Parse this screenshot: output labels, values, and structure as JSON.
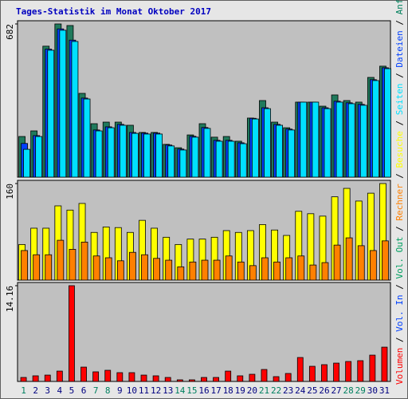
{
  "title": "Tages-Statistik im Monat Oktober 2017",
  "side_legend": {
    "separator": " / ",
    "items": [
      {
        "name": "Volumen",
        "color": "#ff0000"
      },
      {
        "name": "Vol. In",
        "color": "#0040ff"
      },
      {
        "name": "Vol. Out",
        "color": "#00a060"
      },
      {
        "name": "Rechner",
        "color": "#ff8000"
      },
      {
        "name": "Besuche",
        "color": "#ffff00"
      },
      {
        "name": "Seiten",
        "color": "#00e0ff"
      },
      {
        "name": "Dateien",
        "color": "#0040ff"
      },
      {
        "name": "Anfragen",
        "color": "#00805c"
      }
    ]
  },
  "chart_data": [
    {
      "type": "bar",
      "ylim": [
        0,
        682
      ],
      "yticks": [
        682
      ],
      "series": [
        {
          "name": "Anfragen",
          "color": "#1f7a5c",
          "values": [
            181,
            206,
            583,
            682,
            675,
            373,
            238,
            245,
            245,
            231,
            199,
            199,
            146,
            131,
            188,
            238,
            178,
            181,
            160,
            263,
            341,
            245,
            220,
            334,
            334,
            316,
            366,
            341,
            334,
            444,
            494
          ]
        },
        {
          "name": "Dateien",
          "color": "#0040ff",
          "values": [
            150,
            185,
            570,
            660,
            610,
            352,
            210,
            224,
            235,
            199,
            196,
            196,
            143,
            125,
            182,
            221,
            164,
            164,
            153,
            262,
            309,
            235,
            214,
            334,
            334,
            309,
            338,
            331,
            324,
            434,
            487
          ]
        },
        {
          "name": "Seiten",
          "color": "#00e0ff",
          "values": [
            124,
            181,
            565,
            654,
            604,
            348,
            206,
            220,
            231,
            195,
            192,
            192,
            139,
            121,
            178,
            217,
            160,
            160,
            149,
            259,
            305,
            231,
            210,
            334,
            334,
            305,
            334,
            327,
            320,
            430,
            483
          ]
        }
      ]
    },
    {
      "type": "bar",
      "ylim": [
        0,
        160
      ],
      "yticks": [
        160
      ],
      "series": [
        {
          "name": "Besuche",
          "color": "#ffff00",
          "values": [
            59,
            86,
            86,
            123,
            116,
            127,
            79,
            88,
            87,
            79,
            99,
            86,
            71,
            59,
            68,
            68,
            71,
            82,
            79,
            82,
            92,
            83,
            74,
            114,
            110,
            106,
            138,
            152,
            131,
            144,
            160
          ]
        },
        {
          "name": "Rechner",
          "color": "#ff8000",
          "values": [
            49,
            42,
            42,
            66,
            51,
            63,
            40,
            37,
            32,
            46,
            42,
            36,
            33,
            22,
            30,
            33,
            33,
            40,
            30,
            24,
            37,
            30,
            37,
            40,
            25,
            29,
            58,
            70,
            57,
            49,
            65
          ]
        }
      ]
    },
    {
      "type": "bar",
      "ylim": [
        0,
        14.16
      ],
      "yticks": [
        14.16
      ],
      "categories": [
        "1",
        "2",
        "3",
        "4",
        "5",
        "6",
        "7",
        "8",
        "9",
        "10",
        "11",
        "12",
        "13",
        "14",
        "15",
        "16",
        "17",
        "18",
        "19",
        "20",
        "21",
        "22",
        "23",
        "24",
        "25",
        "26",
        "27",
        "28",
        "29",
        "30",
        "31"
      ],
      "category_colors": [
        "#008060",
        "#000080",
        "#000080",
        "#000080",
        "#000080",
        "#000080",
        "#008060",
        "#008060",
        "#000080",
        "#000080",
        "#000080",
        "#000080",
        "#000080",
        "#008060",
        "#008060",
        "#000080",
        "#000080",
        "#000080",
        "#000080",
        "#000080",
        "#008060",
        "#008060",
        "#000080",
        "#000080",
        "#000080",
        "#000080",
        "#000080",
        "#008060",
        "#008060",
        "#000080",
        "#000080"
      ],
      "series": [
        {
          "name": "Volumen",
          "color": "#ff0000",
          "values": [
            0.59,
            0.83,
            0.94,
            1.53,
            14.16,
            2.12,
            1.42,
            1.65,
            1.3,
            1.3,
            0.94,
            0.83,
            0.59,
            0.24,
            0.24,
            0.59,
            0.59,
            1.53,
            0.83,
            1.06,
            1.77,
            0.71,
            1.18,
            3.54,
            2.24,
            2.48,
            2.71,
            2.95,
            3.07,
            3.89,
            5.07
          ]
        }
      ]
    }
  ]
}
